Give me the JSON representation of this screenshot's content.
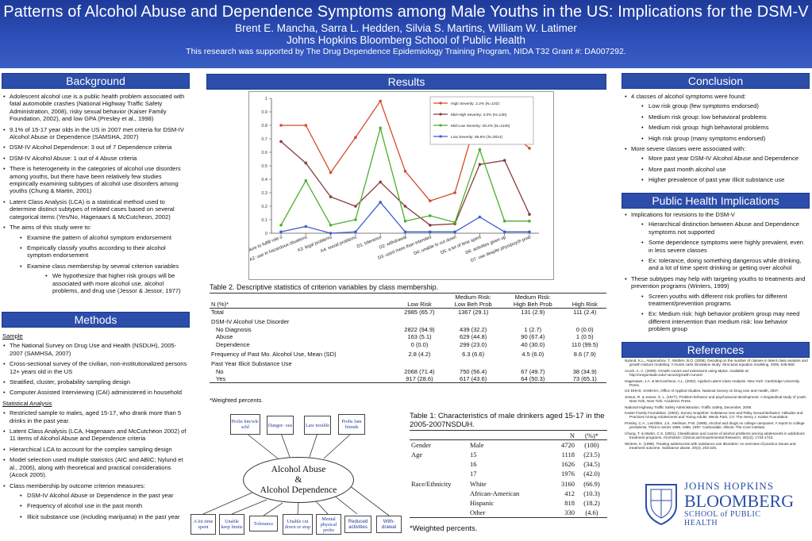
{
  "header": {
    "title": "Patterns of Alcohol Abuse and Dependence Symptoms among Male Youths in the US: Implications for the DSM-V",
    "authors": "Brent E. Mancha, Sarra L. Hedden, Silvia S. Martins, William W. Latimer",
    "school": "Johns Hopkins Bloomberg School of Public Health",
    "grant": "This research was supported by The Drug Dependence Epidemiology Training Program, NIDA T32 Grant #: DA007292."
  },
  "background": {
    "heading": "Background",
    "bullets": [
      "Adolescent alcohol use is a public health problem associated with fatal automobile crashes (National Highway Traffic Safety Administration, 2008), risky sexual behavior (Kaiser Family Foundation, 2002), and low GPA (Presley et al., 1998)",
      "9.1% of 15-17 year olds in the US in 2007 met criteria for DSM-IV Alcohol Abuse or Dependence (SAMSHA, 2007)",
      "DSM-IV Alcohol Dependence: 3 out of 7 Dependence criteria",
      "DSM-IV Alcohol Abuse: 1 out of 4 Abuse criteria",
      "There is heterogeneity in the categories of alcohol use disorders among youths, but there have been relatively few studies empirically examining subtypes of alcohol use disorders among youths (Chung & Martin, 2001)",
      "Latent Class Analysis (LCA) is a statistical method used to determine distinct subtypes of related cases based on several categorical items (Yes/No, Hagenaars & McCutcheon, 2002)",
      "The aims of this study were to:"
    ],
    "aims": [
      "Examine the pattern of alcohol symptom endorsement",
      "Empirically classify youths according to their alcohol symptom endorsement",
      "Examine class membership by several criterion variables"
    ],
    "hypothesis": "We hypothesize that higher risk groups will be associated with more alcohol use, alcohol problems, and drug use (Jessor & Jessor, 1977)"
  },
  "methods": {
    "heading": "Methods",
    "sample_label": "Sample",
    "sample": [
      "The National Survey on Drug Use and Health (NSDUH), 2005-2007 (SAMHSA, 2007)",
      "Cross-sectional survey of the civilian, non-institutionalized persons 12+ years old in the US",
      "Stratified, cluster, probability sampling design",
      "Computer Assisted Interviewing (CAI) administered in household"
    ],
    "stats_label": "Statistical Analysis",
    "stats": [
      "Restricted sample to males, aged 15-17, who drank more than 5 drinks in the past year.",
      "Latent Class Analysis (LCA, Hagenaars and McCutcheon 2002) of 11 items of Alcohol Abuse and Dependence criteria",
      "Hierarchical LCA to account for the complex sampling design",
      "Model selection used multiple statistics (AIC and ABIC; Nylund et al., 2006), along with theoretical and practical considerations (Acock 2005).",
      "Class membership by outcome criterion measures:"
    ],
    "criteria": [
      "DSM-IV Alcohol Abuse or Dependence in the past year",
      "Frequency of alcohol use in the past month",
      "Illicit substance use (including marijuana) in the past year"
    ]
  },
  "results": {
    "heading": "Results"
  },
  "chart_data": {
    "type": "line",
    "categories": [
      "A1: failure to fulfill role o",
      "A2: use in hazardous situations",
      "A3: legal problems",
      "A4: social problems",
      "D1: tolerance",
      "D2: withdrawal",
      "D3: used more than intended",
      "D4: unable to cut down",
      "D5: a lot of time spent",
      "D6: activities given up",
      "D7: use despite phys/psych prob"
    ],
    "ylim": [
      0,
      1
    ],
    "yticks": [
      "0",
      "0.1",
      "0.2",
      "0.3",
      "0.4",
      "0.5",
      "0.6",
      "0.7",
      "0.8",
      "0.9",
      "1"
    ],
    "grid": false,
    "legend_position": "top-right",
    "series": [
      {
        "name": "High Severity: 2.2% (N=102)",
        "color": "#d64a2e",
        "values": [
          0.8,
          0.8,
          0.45,
          0.71,
          0.98,
          0.46,
          0.24,
          0.3,
          0.93,
          0.79,
          0.63
        ]
      },
      {
        "name": "Mid-High Severity: 3.0% (N=130)",
        "color": "#8b3a3a",
        "values": [
          0.68,
          0.52,
          0.27,
          0.2,
          0.38,
          0.2,
          0.06,
          0.07,
          0.51,
          0.54,
          0.14
        ]
      },
      {
        "name": "Mid-Low Severity: 29.2% (N=1340)",
        "color": "#4caf2c",
        "values": [
          0.06,
          0.39,
          0.06,
          0.1,
          0.78,
          0.09,
          0.13,
          0.08,
          0.62,
          0.09,
          0.09
        ]
      },
      {
        "name": "Low Severity: 65.6% (N=3014)",
        "color": "#3b5fd0",
        "values": [
          0.01,
          0.05,
          0.0,
          0.01,
          0.23,
          0.01,
          0.01,
          0.01,
          0.12,
          0.01,
          0.01
        ]
      }
    ]
  },
  "table2": {
    "title": "Table 2. Descriptive statistics of criterion variables by class membership.",
    "header_top": [
      "",
      "",
      "Medium Risk:",
      "Medium Risk:",
      ""
    ],
    "header": [
      "N (%)*",
      "Low Risk",
      "Low Beh Prob",
      "High Beh Prob",
      "High Risk"
    ],
    "rows": [
      {
        "label": "Total",
        "values": [
          "2985 (65.7)",
          "1367 (29.1)",
          "131 (2.9)",
          "111 (2.4)"
        ],
        "indent": false,
        "section": false
      },
      {
        "label": "DSM-IV Alcohol Use Disorder",
        "values": [
          "",
          "",
          "",
          ""
        ],
        "indent": false,
        "section": true
      },
      {
        "label": "No Diagnosis",
        "values": [
          "2822 (94.9)",
          "439 (32.2)",
          "1 (2.7)",
          "0 (0.0)"
        ],
        "indent": true,
        "section": false
      },
      {
        "label": "Abuse",
        "values": [
          "163 (5.1)",
          "629 (44.8)",
          "90 (67.4)",
          "1 (0.5)"
        ],
        "indent": true,
        "section": false
      },
      {
        "label": "Dependence",
        "values": [
          "0 (0.0)",
          "299 (23.0)",
          "40 (30.0)",
          "110 (99.5)"
        ],
        "indent": true,
        "section": false
      },
      {
        "label": "Frequency of Past Mo. Alcohol Use, Mean (SD)",
        "values": [
          "2.8 (4.2)",
          "6.3 (6.6)",
          "4.5 (6.0)",
          "8.6 (7.9)"
        ],
        "indent": false,
        "section": false
      },
      {
        "label": "Past Year Illicit Substance Use",
        "values": [
          "",
          "",
          "",
          ""
        ],
        "indent": false,
        "section": true
      },
      {
        "label": "No",
        "values": [
          "2068 (71.4)",
          "750 (56.4)",
          "67 (49.7)",
          "38 (34.9)"
        ],
        "indent": true,
        "section": false
      },
      {
        "label": "Yes",
        "values": [
          "917 (28.6)",
          "617 (43.6)",
          "64 (50.3)",
          "73 (65.1)"
        ],
        "indent": true,
        "section": false
      }
    ],
    "footnote": "*Weighted percents."
  },
  "table1": {
    "title": "Table 1: Characteristics of male drinkers aged 15-17 in the 2005-2007NSDUH.",
    "header": [
      "",
      "",
      "N",
      "(%)*"
    ],
    "rows": [
      [
        "Gender",
        "Male",
        "4720",
        "(100)"
      ],
      [
        "Age",
        "15",
        "1118",
        "(23.5)"
      ],
      [
        "",
        "16",
        "1626",
        "(34.5)"
      ],
      [
        "",
        "17",
        "1976",
        "(42.0)"
      ],
      [
        "Race/Ethnicity",
        "White",
        "3160",
        "(66.9)"
      ],
      [
        "",
        "African-American",
        "412",
        "(10.3)"
      ],
      [
        "",
        "Hispanic",
        "818",
        "(18.2)"
      ],
      [
        "",
        "Other",
        "330",
        "(4.6)"
      ]
    ],
    "footnote": "*Weighted percents."
  },
  "diagram": {
    "center_l1": "Alcohol Abuse",
    "center_l2": "&",
    "center_l3": "Alcohol Dependence",
    "top_boxes": [
      "Probs hm/wk/ schl",
      "Danger- ous",
      "Law trouble",
      "Probs fam friends"
    ],
    "bottom_boxes": [
      "A lot time spent",
      "Unable keep limits",
      "Tolerance",
      "Unable cut down or stop",
      "Mental physical probs",
      "Reduced activities",
      "With- drawal"
    ]
  },
  "conclusion": {
    "heading": "Conclusion",
    "l1": "4 classes of alcohol symptoms were found:",
    "classes": [
      "Low risk group (few symptoms endorsed)",
      "Medium risk group: low behavioral problems",
      "Medium risk group: high behavioral problems",
      "High risk group (many symptoms endorsed)"
    ],
    "l2": "More severe classes were associated with:",
    "assoc": [
      "More past year DSM-IV Alcohol Abuse and Dependence",
      "More past month alcohol use",
      "Higher prevalence of past year Illicit substance use"
    ]
  },
  "implications": {
    "heading": "Public Health Implications",
    "l1": "Implications for revisions to the DSM-V",
    "i1": [
      "Hierarchical distinction between Abuse and Dependence symptoms not supported",
      "Some dependence symptoms were highly prevalent, even in less severe classes",
      "Ex: tolerance, doing something dangerous while drinking, and a lot of time spent drinking or getting over alcohol"
    ],
    "l2": "These subtypes may help with targeting youths to treatments and prevention programs (Winters, 1999)",
    "i2": [
      "Screen youths with different risk profiles for different treatment/prevention programs",
      "Ex: Medium risk: high behavior problem group may need different intervention than medium risk: low behavior problem group"
    ]
  },
  "references": {
    "heading": "References",
    "items": [
      "Nylund, K.L., Asparouhov, T., Muthén, B.O. (2006). Deciding on the number of classes in latent class analysis and growth mixture modeling: A monte carlo simulation study. Structural equation modeling. 2006, 535-569.",
      "Acock, A. C. (2005). Growth curves and extensions using Mplus. Available at: http://oregonstate.edu/~acock/growth-curves/",
      "Hagenaars, J.A. & McCutcheon, A.L. (2002). Applied Latent Class Analysis. New York: Cambridge University Press.",
      "US DHHS, SAMHSA, Office of Applied Studies. National Survey on Drug Use and Health, 2007.",
      "Jessor, R. & Jessor, S. L. (1977). Problem behavior and psychosocial development: A longitudinal study of youth. New York, New York: Academic Press.",
      "National Highway Traffic Safety Administration. Traffic Safety, December, 2008.",
      "Kaiser Family Foundation. (2002). Survey Snapshot: Substance Use and Risky Sexual Behavior: Attitudes and Practices Among Adolescents and Young Adults. Menlo Park, CA: The Henry J. Kaiser Foundation.",
      "Presley, C.A., Leichliter, J.S., Meilman, P.W. (1998). Alcohol and drugs on college campuses: A report to college presidents, Third in series 1995, 1996, 1997. Carbondale, Illinois: The Core Institute.",
      "Chung, T. & Martin, C.S. (2001). Classification and course of alcohol problems among adolescents in addictions treatment programs. Alcoholism: Clinical and Experimental Research, 25(12), 1734-1742.",
      "Winters, K. (1999). Treating adolescents with substance use disorders: An overview of practice issues and treatment outcome. Substance abuse, 20(4), 203-225."
    ]
  },
  "logo": {
    "l1": "JOHNS HOPKINS",
    "l2": "BLOOMBERG",
    "l3": "SCHOOL of PUBLIC HEALTH"
  }
}
